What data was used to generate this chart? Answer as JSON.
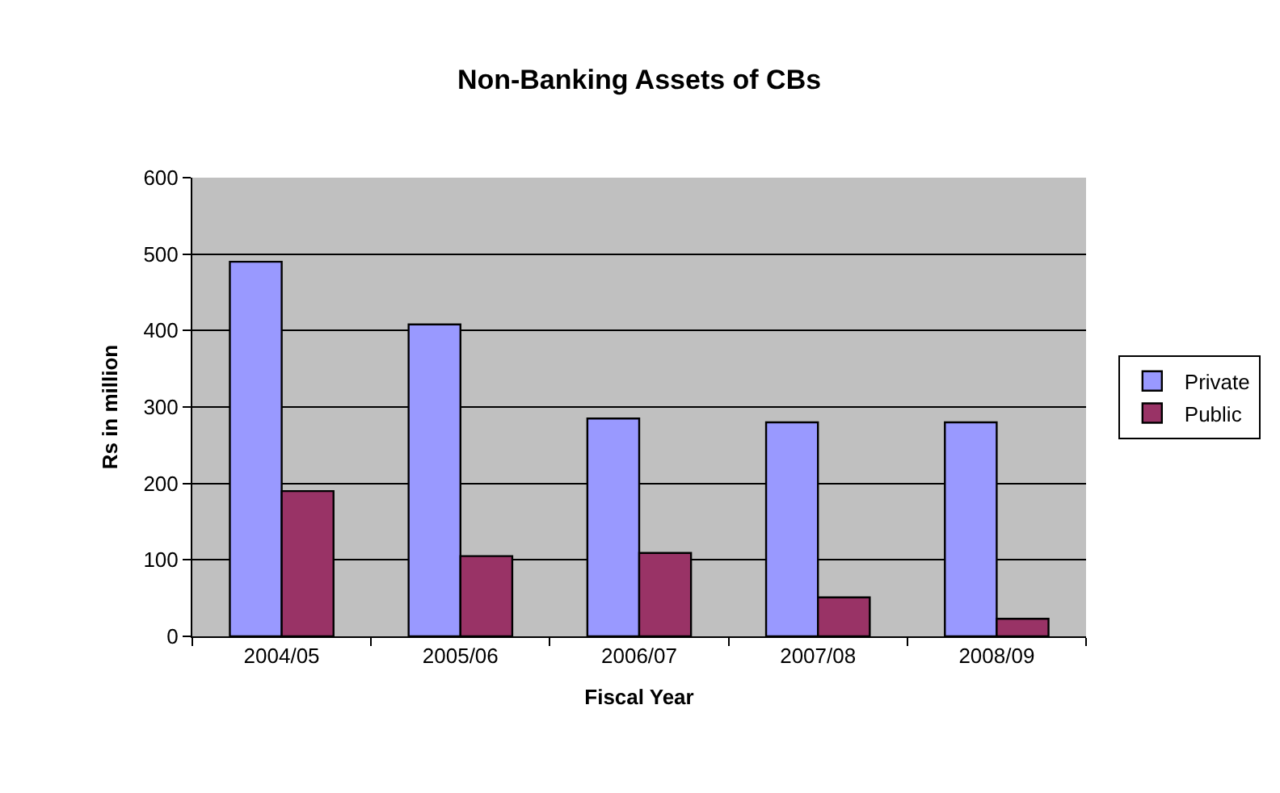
{
  "chart_data": {
    "type": "bar",
    "title": "Non-Banking Assets of CBs",
    "xlabel": "Fiscal Year",
    "ylabel": "Rs in million",
    "categories": [
      "2004/05",
      "2005/06",
      "2006/07",
      "2007/08",
      "2008/09"
    ],
    "series": [
      {
        "name": "Private",
        "color": "#9999ff",
        "values": [
          490,
          408,
          285,
          280,
          280
        ]
      },
      {
        "name": "Public",
        "color": "#993366",
        "values": [
          190,
          105,
          109,
          51,
          23
        ]
      }
    ],
    "ylim": [
      0,
      600
    ],
    "yticks": [
      0,
      100,
      200,
      300,
      400,
      500,
      600
    ],
    "grid": "y",
    "legend": "right"
  }
}
